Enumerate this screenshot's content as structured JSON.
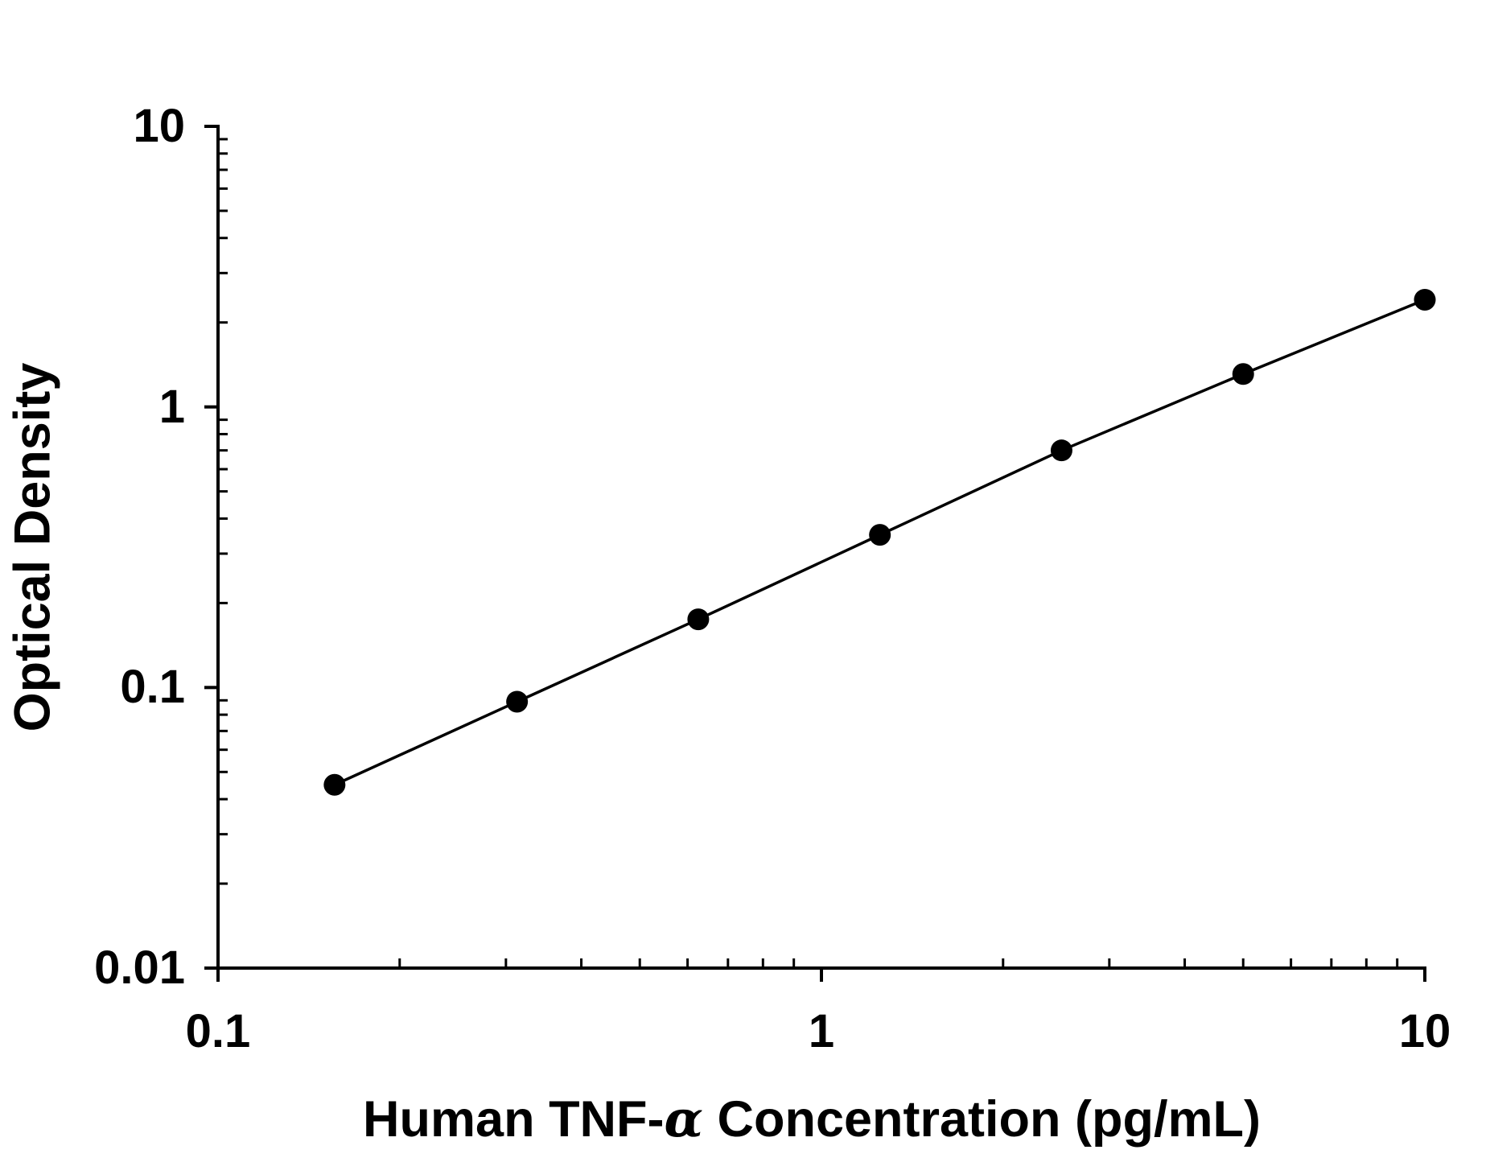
{
  "page": {
    "background_color": "#ffffff",
    "ink_color": "#000000"
  },
  "chart_data": {
    "type": "line",
    "scale": "log-log",
    "title": "",
    "xlabel": "Human TNF-α Concentration (pg/mL)",
    "xlabel_parts": {
      "prefix": "Human TNF-",
      "alpha": "α",
      "suffix": " Concentration (pg/mL)"
    },
    "ylabel": "Optical Density",
    "xlim": [
      0.1,
      10
    ],
    "ylim": [
      0.01,
      10
    ],
    "grid": false,
    "legend": null,
    "log_minor_ticks": true,
    "x_ticks": [
      {
        "value": 0.1,
        "label": "0.1"
      },
      {
        "value": 1,
        "label": "1"
      },
      {
        "value": 10,
        "label": "10"
      }
    ],
    "y_ticks": [
      {
        "value": 10,
        "label": "10"
      },
      {
        "value": 1,
        "label": "1"
      },
      {
        "value": 0.1,
        "label": "0.1"
      },
      {
        "value": 0.01,
        "label": "0.01"
      }
    ],
    "series": [
      {
        "name": "standard-curve",
        "marker": "filled-circle",
        "color": "#000000",
        "points": [
          {
            "x": 0.156,
            "y": 0.045
          },
          {
            "x": 0.313,
            "y": 0.089
          },
          {
            "x": 0.625,
            "y": 0.175
          },
          {
            "x": 1.25,
            "y": 0.35
          },
          {
            "x": 2.5,
            "y": 0.7
          },
          {
            "x": 5,
            "y": 1.31
          },
          {
            "x": 10,
            "y": 2.41
          }
        ]
      }
    ]
  }
}
